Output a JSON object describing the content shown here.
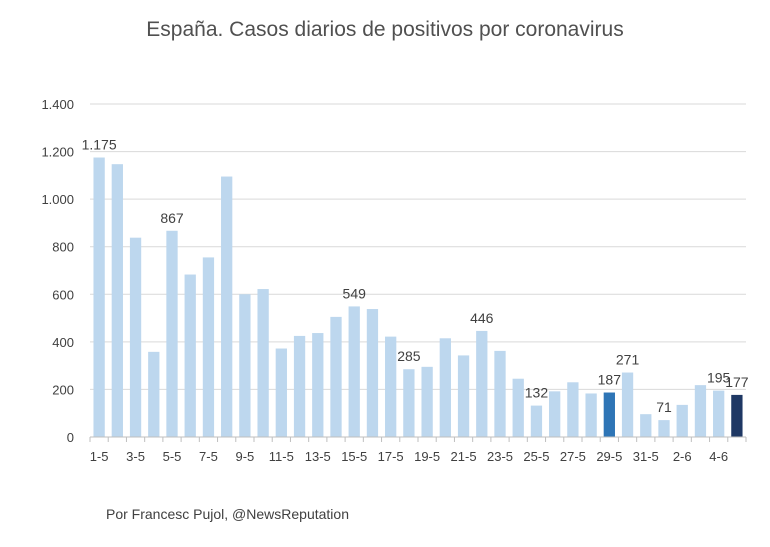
{
  "chart_data": {
    "type": "bar",
    "title": "España. Casos diarios de positivos por coronavirus",
    "source": "Por Francesc Pujol, @NewsReputation",
    "categories": [
      "1-5",
      "2-5",
      "3-5",
      "4-5",
      "5-5",
      "6-5",
      "7-5",
      "8-5",
      "9-5",
      "10-5",
      "11-5",
      "12-5",
      "13-5",
      "14-5",
      "15-5",
      "16-5",
      "17-5",
      "18-5",
      "19-5",
      "20-5",
      "21-5",
      "22-5",
      "23-5",
      "24-5",
      "25-5",
      "26-5",
      "27-5",
      "28-5",
      "29-5",
      "30-5",
      "31-5",
      "1-6",
      "2-6",
      "3-6",
      "4-6",
      "5-6"
    ],
    "x_tick_labels": [
      "1-5",
      "",
      "3-5",
      "",
      "5-5",
      "",
      "7-5",
      "",
      "9-5",
      "",
      "11-5",
      "",
      "13-5",
      "",
      "15-5",
      "",
      "17-5",
      "",
      "19-5",
      "",
      "21-5",
      "",
      "23-5",
      "",
      "25-5",
      "",
      "27-5",
      "",
      "29-5",
      "",
      "31-5",
      "",
      "2-6",
      "",
      "4-6",
      ""
    ],
    "values": [
      1175,
      1147,
      838,
      358,
      867,
      683,
      755,
      1095,
      600,
      622,
      372,
      425,
      437,
      505,
      549,
      538,
      422,
      285,
      295,
      415,
      343,
      446,
      362,
      245,
      132,
      192,
      230,
      183,
      187,
      271,
      96,
      71,
      135,
      218,
      195,
      177
    ],
    "data_labels": [
      {
        "index": 0,
        "text": "1.175"
      },
      {
        "index": 4,
        "text": "867"
      },
      {
        "index": 14,
        "text": "549"
      },
      {
        "index": 17,
        "text": "285"
      },
      {
        "index": 21,
        "text": "446"
      },
      {
        "index": 24,
        "text": "132"
      },
      {
        "index": 28,
        "text": "187"
      },
      {
        "index": 29,
        "text": "271"
      },
      {
        "index": 31,
        "text": "71"
      },
      {
        "index": 34,
        "text": "195"
      },
      {
        "index": 35,
        "text": "177"
      }
    ],
    "yticks": [
      0,
      200,
      400,
      600,
      800,
      1000,
      1200,
      1400
    ],
    "ytick_labels": [
      "0",
      "200",
      "400",
      "600",
      "800",
      "1.000",
      "1.200",
      "1.400"
    ],
    "ylim": [
      0,
      1400
    ],
    "xlabel": "",
    "ylabel": "",
    "grid": true,
    "colors": {
      "default": "#bdd7ee",
      "highlight": "#2e75b6",
      "last": "#1f3864",
      "grid": "#d9d9d9",
      "axis": "#bfbfbf"
    },
    "highlight_indices": [
      28
    ],
    "last_indices": [
      35
    ]
  }
}
